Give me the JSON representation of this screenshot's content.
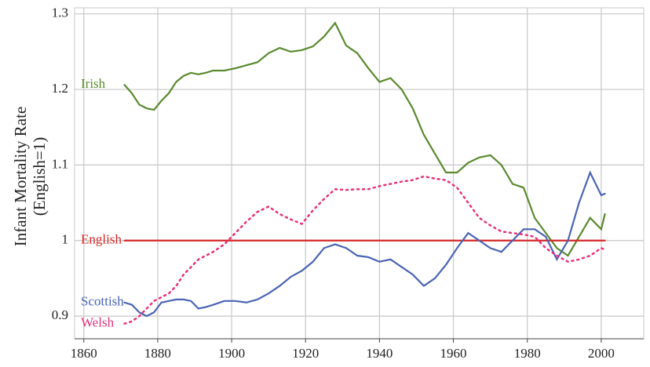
{
  "chart_data": {
    "type": "line",
    "y_label": [
      "Infant Mortality Rate",
      "(English=1)"
    ],
    "x": [
      1871,
      1873,
      1875,
      1877,
      1879,
      1881,
      1883,
      1885,
      1887,
      1889,
      1891,
      1893,
      1895,
      1898,
      1901,
      1904,
      1907,
      1910,
      1913,
      1916,
      1919,
      1922,
      1925,
      1928,
      1931,
      1934,
      1937,
      1940,
      1943,
      1946,
      1949,
      1952,
      1955,
      1958,
      1961,
      1964,
      1967,
      1970,
      1973,
      1976,
      1979,
      1982,
      1985,
      1988,
      1991,
      1994,
      1997,
      2000,
      2001
    ],
    "series": [
      {
        "name": "Irish",
        "color": "#5a8a2e",
        "dash": false,
        "values": [
          1.206,
          1.195,
          1.18,
          1.175,
          1.173,
          1.185,
          1.195,
          1.21,
          1.218,
          1.222,
          1.22,
          1.222,
          1.225,
          1.225,
          1.228,
          1.232,
          1.236,
          1.248,
          1.255,
          1.25,
          1.252,
          1.257,
          1.27,
          1.288,
          1.258,
          1.248,
          1.228,
          1.21,
          1.215,
          1.2,
          1.175,
          1.14,
          1.115,
          1.09,
          1.09,
          1.103,
          1.11,
          1.113,
          1.1,
          1.075,
          1.07,
          1.03,
          1.01,
          0.99,
          0.98,
          1.005,
          1.03,
          1.015,
          1.035
        ]
      },
      {
        "name": "English",
        "color": "#d62728",
        "dash": false,
        "values": [
          1,
          1,
          1,
          1,
          1,
          1,
          1,
          1,
          1,
          1,
          1,
          1,
          1,
          1,
          1,
          1,
          1,
          1,
          1,
          1,
          1,
          1,
          1,
          1,
          1,
          1,
          1,
          1,
          1,
          1,
          1,
          1,
          1,
          1,
          1,
          1,
          1,
          1,
          1,
          1,
          1,
          1,
          1,
          1,
          1,
          1,
          1,
          1,
          1
        ]
      },
      {
        "name": "Scottish",
        "color": "#4a64b4",
        "dash": false,
        "values": [
          0.918,
          0.915,
          0.905,
          0.9,
          0.905,
          0.918,
          0.92,
          0.922,
          0.922,
          0.92,
          0.91,
          0.912,
          0.915,
          0.92,
          0.92,
          0.918,
          0.922,
          0.93,
          0.94,
          0.952,
          0.96,
          0.972,
          0.99,
          0.995,
          0.99,
          0.98,
          0.978,
          0.972,
          0.975,
          0.965,
          0.955,
          0.94,
          0.95,
          0.968,
          0.99,
          1.01,
          1.0,
          0.99,
          0.985,
          1.0,
          1.015,
          1.015,
          1.005,
          0.975,
          1.0,
          1.05,
          1.09,
          1.06,
          1.062
        ]
      },
      {
        "name": "Welsh",
        "color": "#e8307a",
        "dash": true,
        "values": [
          0.89,
          0.893,
          0.9,
          0.91,
          0.92,
          0.925,
          0.93,
          0.94,
          0.955,
          0.965,
          0.975,
          0.98,
          0.985,
          0.995,
          1.01,
          1.025,
          1.038,
          1.045,
          1.035,
          1.028,
          1.022,
          1.04,
          1.055,
          1.068,
          1.067,
          1.068,
          1.068,
          1.072,
          1.075,
          1.078,
          1.08,
          1.085,
          1.082,
          1.08,
          1.07,
          1.05,
          1.03,
          1.02,
          1.012,
          1.01,
          1.008,
          1.005,
          0.99,
          0.98,
          0.972,
          0.975,
          0.98,
          0.99,
          0.988
        ]
      }
    ],
    "xlim": [
      1857.5,
      2011.5
    ],
    "ylim": [
      0.87,
      1.308
    ],
    "xticks": [
      1860,
      1880,
      1900,
      1920,
      1940,
      1960,
      1980,
      2000
    ],
    "yticks": [
      0.9,
      1.0,
      1.1,
      1.2,
      1.3
    ],
    "grid": true
  }
}
